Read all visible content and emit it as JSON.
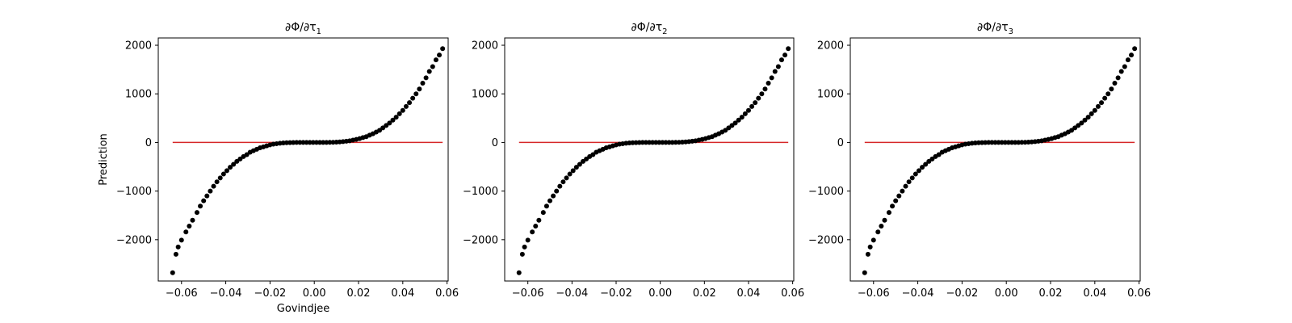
{
  "chart_data": [
    {
      "type": "scatter",
      "title": "∂Φ/∂τ",
      "title_subscript": "1",
      "xlabel": "Govindjee",
      "ylabel": "Prediction",
      "xlim": [
        -0.0705,
        0.0605
      ],
      "ylim": [
        -2850,
        2150
      ],
      "xticks": [
        -0.06,
        -0.04,
        -0.02,
        0.0,
        0.02,
        0.04,
        0.06
      ],
      "xtick_labels": [
        "−0.06",
        "−0.04",
        "−0.02",
        "0.00",
        "0.02",
        "0.04",
        "0.06"
      ],
      "yticks": [
        -2000,
        -1000,
        0,
        1000,
        2000
      ],
      "ytick_labels": [
        "−2000",
        "−1000",
        "0",
        "1000",
        "2000"
      ],
      "x": [
        -0.064,
        -0.0625,
        -0.0615,
        -0.06,
        -0.058,
        -0.0565,
        -0.055,
        -0.053,
        -0.0515,
        -0.05,
        -0.0485,
        -0.047,
        -0.0455,
        -0.044,
        -0.0425,
        -0.041,
        -0.0395,
        -0.038,
        -0.0365,
        -0.035,
        -0.0335,
        -0.032,
        -0.0305,
        -0.029,
        -0.0275,
        -0.026,
        -0.0245,
        -0.023,
        -0.0215,
        -0.02,
        -0.0185,
        -0.017,
        -0.0155,
        -0.014,
        -0.0125,
        -0.011,
        -0.0095,
        -0.008,
        -0.0065,
        -0.005,
        -0.0035,
        -0.002,
        -0.0005,
        0.001,
        0.0025,
        0.004,
        0.0055,
        0.007,
        0.0085,
        0.01,
        0.0115,
        0.013,
        0.0145,
        0.016,
        0.0175,
        0.019,
        0.0205,
        0.022,
        0.0235,
        0.025,
        0.0265,
        0.028,
        0.0295,
        0.031,
        0.0325,
        0.034,
        0.0355,
        0.037,
        0.0385,
        0.04,
        0.0415,
        0.043,
        0.0445,
        0.046,
        0.0475,
        0.049,
        0.0505,
        0.052,
        0.0535,
        0.055,
        0.0565,
        0.058
      ],
      "y": [
        -2680,
        -2300,
        -2150,
        -2010,
        -1840,
        -1720,
        -1600,
        -1440,
        -1310,
        -1200,
        -1100,
        -1000,
        -900,
        -810,
        -730,
        -650,
        -580,
        -510,
        -450,
        -390,
        -340,
        -290,
        -250,
        -200,
        -170,
        -140,
        -110,
        -90,
        -70,
        -50,
        -35,
        -25,
        -15,
        -10,
        -5,
        -3,
        -1,
        0,
        0,
        0,
        0,
        0,
        0,
        0,
        0,
        0,
        1,
        2,
        4,
        7,
        12,
        18,
        26,
        35,
        48,
        63,
        80,
        100,
        120,
        150,
        180,
        215,
        250,
        300,
        350,
        400,
        460,
        520,
        590,
        660,
        740,
        820,
        910,
        1000,
        1100,
        1220,
        1330,
        1460,
        1560,
        1700,
        1800,
        1930
      ],
      "hline": {
        "y": 0,
        "x_from": -0.064,
        "x_to": 0.058,
        "color": "#d62728"
      },
      "marker_color": "#000000"
    },
    {
      "type": "scatter",
      "title": "∂Φ/∂τ",
      "title_subscript": "2",
      "xlabel": "",
      "ylabel": "",
      "xlim": [
        -0.0705,
        0.0605
      ],
      "ylim": [
        -2850,
        2150
      ],
      "xticks": [
        -0.06,
        -0.04,
        -0.02,
        0.0,
        0.02,
        0.04,
        0.06
      ],
      "xtick_labels": [
        "−0.06",
        "−0.04",
        "−0.02",
        "0.00",
        "0.02",
        "0.04",
        "0.06"
      ],
      "yticks": [
        -2000,
        -1000,
        0,
        1000,
        2000
      ],
      "ytick_labels": [
        "−2000",
        "−1000",
        "0",
        "1000",
        "2000"
      ],
      "x": [
        -0.064,
        -0.0625,
        -0.0615,
        -0.06,
        -0.058,
        -0.0565,
        -0.055,
        -0.053,
        -0.0515,
        -0.05,
        -0.0485,
        -0.047,
        -0.0455,
        -0.044,
        -0.0425,
        -0.041,
        -0.0395,
        -0.038,
        -0.0365,
        -0.035,
        -0.0335,
        -0.032,
        -0.0305,
        -0.029,
        -0.0275,
        -0.026,
        -0.0245,
        -0.023,
        -0.0215,
        -0.02,
        -0.0185,
        -0.017,
        -0.0155,
        -0.014,
        -0.0125,
        -0.011,
        -0.0095,
        -0.008,
        -0.0065,
        -0.005,
        -0.0035,
        -0.002,
        -0.0005,
        0.001,
        0.0025,
        0.004,
        0.0055,
        0.007,
        0.0085,
        0.01,
        0.0115,
        0.013,
        0.0145,
        0.016,
        0.0175,
        0.019,
        0.0205,
        0.022,
        0.0235,
        0.025,
        0.0265,
        0.028,
        0.0295,
        0.031,
        0.0325,
        0.034,
        0.0355,
        0.037,
        0.0385,
        0.04,
        0.0415,
        0.043,
        0.0445,
        0.046,
        0.0475,
        0.049,
        0.0505,
        0.052,
        0.0535,
        0.055,
        0.0565,
        0.058
      ],
      "y": [
        -2680,
        -2300,
        -2150,
        -2010,
        -1840,
        -1720,
        -1600,
        -1440,
        -1310,
        -1200,
        -1100,
        -1000,
        -900,
        -810,
        -730,
        -650,
        -580,
        -510,
        -450,
        -390,
        -340,
        -290,
        -250,
        -200,
        -170,
        -140,
        -110,
        -90,
        -70,
        -50,
        -35,
        -25,
        -15,
        -10,
        -5,
        -3,
        -1,
        0,
        0,
        0,
        0,
        0,
        0,
        0,
        0,
        0,
        1,
        2,
        4,
        7,
        12,
        18,
        26,
        35,
        48,
        63,
        80,
        100,
        120,
        150,
        180,
        215,
        250,
        300,
        350,
        400,
        460,
        520,
        590,
        660,
        740,
        820,
        910,
        1000,
        1100,
        1220,
        1330,
        1460,
        1560,
        1700,
        1800,
        1930
      ],
      "hline": {
        "y": 0,
        "x_from": -0.064,
        "x_to": 0.058,
        "color": "#d62728"
      },
      "marker_color": "#000000"
    },
    {
      "type": "scatter",
      "title": "∂Φ/∂τ",
      "title_subscript": "3",
      "xlabel": "",
      "ylabel": "",
      "xlim": [
        -0.0705,
        0.0605
      ],
      "ylim": [
        -2850,
        2150
      ],
      "xticks": [
        -0.06,
        -0.04,
        -0.02,
        0.0,
        0.02,
        0.04,
        0.06
      ],
      "xtick_labels": [
        "−0.06",
        "−0.04",
        "−0.02",
        "0.00",
        "0.02",
        "0.04",
        "0.06"
      ],
      "yticks": [
        -2000,
        -1000,
        0,
        1000,
        2000
      ],
      "ytick_labels": [
        "−2000",
        "−1000",
        "0",
        "1000",
        "2000"
      ],
      "x": [
        -0.064,
        -0.0625,
        -0.0615,
        -0.06,
        -0.058,
        -0.0565,
        -0.055,
        -0.053,
        -0.0515,
        -0.05,
        -0.0485,
        -0.047,
        -0.0455,
        -0.044,
        -0.0425,
        -0.041,
        -0.0395,
        -0.038,
        -0.0365,
        -0.035,
        -0.0335,
        -0.032,
        -0.0305,
        -0.029,
        -0.0275,
        -0.026,
        -0.0245,
        -0.023,
        -0.0215,
        -0.02,
        -0.0185,
        -0.017,
        -0.0155,
        -0.014,
        -0.0125,
        -0.011,
        -0.0095,
        -0.008,
        -0.0065,
        -0.005,
        -0.0035,
        -0.002,
        -0.0005,
        0.001,
        0.0025,
        0.004,
        0.0055,
        0.007,
        0.0085,
        0.01,
        0.0115,
        0.013,
        0.0145,
        0.016,
        0.0175,
        0.019,
        0.0205,
        0.022,
        0.0235,
        0.025,
        0.0265,
        0.028,
        0.0295,
        0.031,
        0.0325,
        0.034,
        0.0355,
        0.037,
        0.0385,
        0.04,
        0.0415,
        0.043,
        0.0445,
        0.046,
        0.0475,
        0.049,
        0.0505,
        0.052,
        0.0535,
        0.055,
        0.0565,
        0.058
      ],
      "y": [
        -2680,
        -2300,
        -2150,
        -2010,
        -1840,
        -1720,
        -1600,
        -1440,
        -1310,
        -1200,
        -1100,
        -1000,
        -900,
        -810,
        -730,
        -650,
        -580,
        -510,
        -450,
        -390,
        -340,
        -290,
        -250,
        -200,
        -170,
        -140,
        -110,
        -90,
        -70,
        -50,
        -35,
        -25,
        -15,
        -10,
        -5,
        -3,
        -1,
        0,
        0,
        0,
        0,
        0,
        0,
        0,
        0,
        0,
        1,
        2,
        4,
        7,
        12,
        18,
        26,
        35,
        48,
        63,
        80,
        100,
        120,
        150,
        180,
        215,
        250,
        300,
        350,
        400,
        460,
        520,
        590,
        660,
        740,
        820,
        910,
        1000,
        1100,
        1220,
        1330,
        1460,
        1560,
        1700,
        1800,
        1930
      ],
      "hline": {
        "y": 0,
        "x_from": -0.064,
        "x_to": 0.058,
        "color": "#d62728"
      },
      "marker_color": "#000000"
    }
  ]
}
